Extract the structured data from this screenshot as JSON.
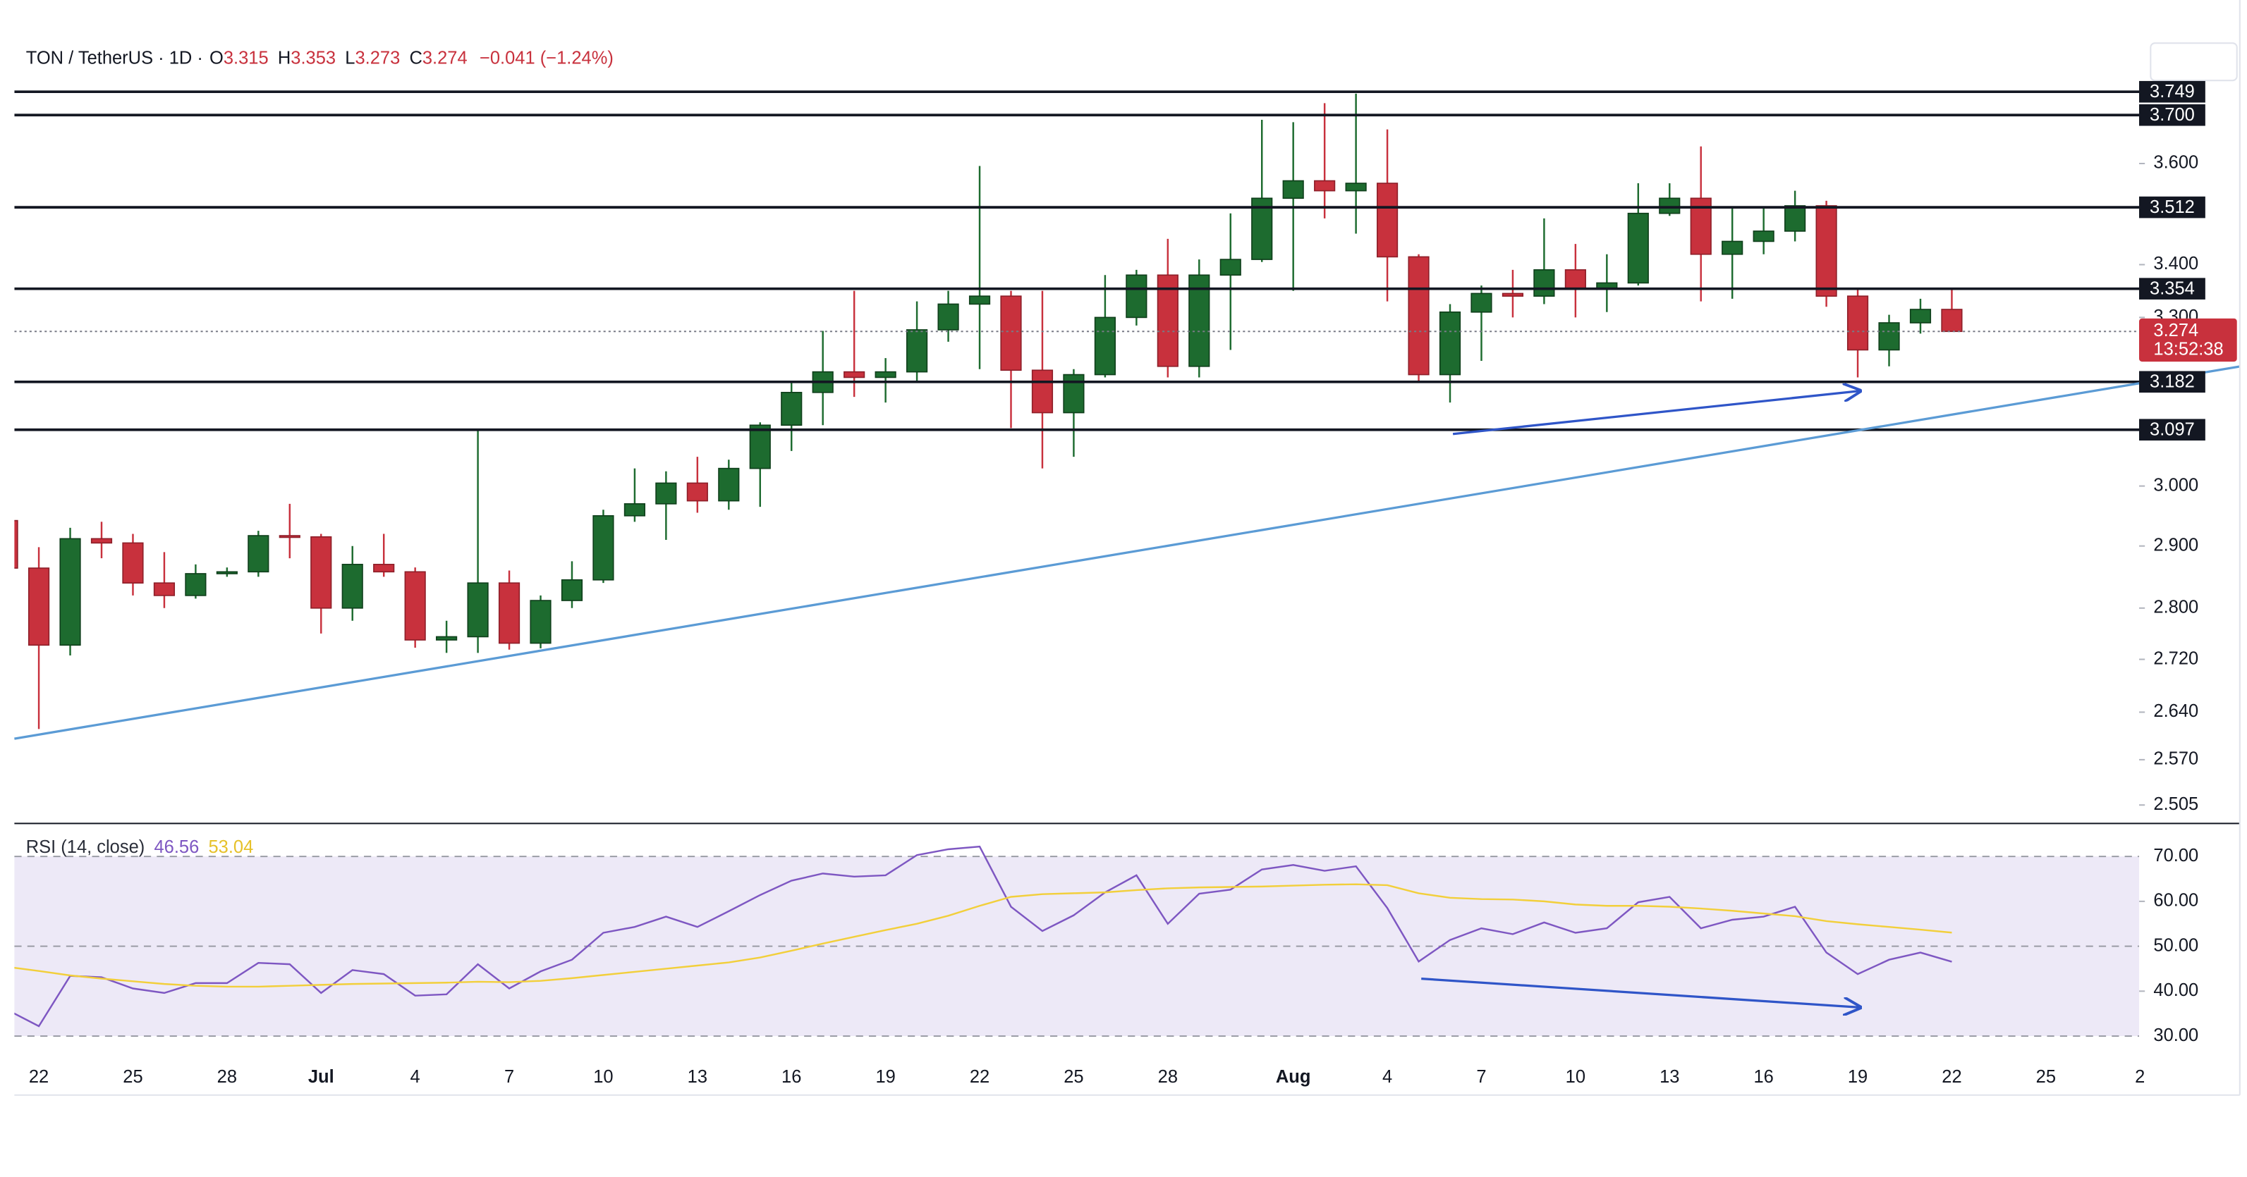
{
  "chart_data": [
    {
      "type": "candlestick",
      "symbol": "TON / TetherUS · 1D ·",
      "ohlc_labels": [
        "O",
        "H",
        "L",
        "C"
      ],
      "change": "−0.041 (−1.24%)",
      "countdown": "13:52:38",
      "up_color": "#1d6b2f",
      "down_color": "#c8313d",
      "log_scale": true,
      "categories": [
        null,
        "22",
        null,
        null,
        "25",
        null,
        null,
        "28",
        null,
        null,
        "Jul",
        null,
        null,
        "4",
        null,
        null,
        "7",
        null,
        null,
        "10",
        null,
        null,
        "13",
        null,
        null,
        "16",
        null,
        null,
        "19",
        null,
        null,
        "22",
        null,
        null,
        "25",
        null,
        null,
        "28",
        null,
        null,
        null,
        "Aug",
        null,
        null,
        "4",
        null,
        null,
        "7",
        null,
        null,
        "10",
        null,
        null,
        "13",
        null,
        null,
        "16",
        null,
        null,
        "19",
        null,
        null,
        "22",
        null,
        null,
        "25",
        null,
        null,
        "2"
      ],
      "open": [
        2.942,
        2.864,
        2.742,
        2.912,
        2.905,
        2.84,
        2.82,
        2.855,
        2.858,
        2.917,
        2.915,
        2.8,
        2.87,
        2.858,
        2.75,
        2.755,
        2.84,
        2.745,
        2.812,
        2.845,
        2.95,
        2.97,
        3.005,
        2.975,
        3.03,
        3.105,
        3.163,
        3.2,
        3.19,
        3.2,
        3.277,
        3.325,
        3.34,
        3.203,
        3.127,
        3.195,
        3.3,
        3.38,
        3.21,
        3.38,
        3.41,
        3.53,
        3.565,
        3.545,
        3.56,
        3.415,
        3.195,
        3.31,
        3.345,
        3.34,
        3.39,
        3.355,
        3.365,
        3.5,
        3.53,
        3.42,
        3.445,
        3.465,
        3.515,
        3.34,
        3.24,
        3.29,
        3.315,
        null,
        null,
        null,
        null,
        null,
        null
      ],
      "high": [
        2.955,
        2.898,
        2.93,
        2.94,
        2.92,
        2.89,
        2.87,
        2.865,
        2.925,
        2.97,
        2.92,
        2.9,
        2.92,
        2.865,
        2.78,
        3.095,
        2.86,
        2.82,
        2.875,
        2.96,
        3.03,
        3.025,
        3.05,
        3.045,
        3.11,
        3.18,
        3.275,
        3.35,
        3.225,
        3.33,
        3.35,
        3.595,
        3.35,
        3.35,
        3.205,
        3.38,
        3.39,
        3.45,
        3.41,
        3.5,
        3.69,
        3.685,
        3.725,
        3.745,
        3.67,
        3.42,
        3.325,
        3.36,
        3.39,
        3.49,
        3.44,
        3.42,
        3.56,
        3.56,
        3.635,
        3.51,
        3.51,
        3.545,
        3.525,
        3.355,
        3.305,
        3.335,
        3.353,
        null,
        null,
        null,
        null,
        null,
        null
      ],
      "low": [
        2.85,
        2.615,
        2.726,
        2.88,
        2.82,
        2.8,
        2.815,
        2.85,
        2.85,
        2.88,
        2.76,
        2.78,
        2.85,
        2.738,
        2.73,
        2.73,
        2.735,
        2.737,
        2.8,
        2.84,
        2.94,
        2.91,
        2.955,
        2.96,
        2.965,
        3.06,
        3.105,
        3.155,
        3.145,
        3.18,
        3.255,
        3.205,
        3.1,
        3.03,
        3.05,
        3.19,
        3.285,
        3.19,
        3.19,
        3.24,
        3.405,
        3.35,
        3.49,
        3.46,
        3.33,
        3.18,
        3.145,
        3.22,
        3.3,
        3.325,
        3.3,
        3.31,
        3.36,
        3.495,
        3.33,
        3.335,
        3.42,
        3.445,
        3.32,
        3.19,
        3.21,
        3.27,
        3.273,
        null,
        null,
        null,
        null,
        null,
        null
      ],
      "close": [
        2.864,
        2.742,
        2.912,
        2.905,
        2.84,
        2.82,
        2.855,
        2.858,
        2.917,
        2.915,
        2.8,
        2.87,
        2.858,
        2.75,
        2.755,
        2.84,
        2.745,
        2.812,
        2.845,
        2.95,
        2.97,
        3.005,
        2.975,
        3.03,
        3.105,
        3.163,
        3.2,
        3.19,
        3.2,
        3.277,
        3.325,
        3.34,
        3.203,
        3.127,
        3.195,
        3.3,
        3.38,
        3.21,
        3.38,
        3.41,
        3.53,
        3.565,
        3.545,
        3.56,
        3.415,
        3.195,
        3.31,
        3.345,
        3.34,
        3.39,
        3.355,
        3.365,
        3.5,
        3.53,
        3.42,
        3.445,
        3.465,
        3.515,
        3.34,
        3.24,
        3.29,
        3.315,
        3.274,
        null,
        null,
        null,
        null,
        null,
        null
      ],
      "ylim": [
        2.479,
        3.885
      ],
      "yticks": [
        2.505,
        {
          "value": 2.57,
          "label": "2.570"
        },
        {
          "value": 2.64,
          "label": "2.640"
        },
        {
          "value": 2.72,
          "label": "2.720"
        },
        {
          "value": 2.8,
          "label": "2.800"
        },
        {
          "value": 2.9,
          "label": "2.900"
        },
        {
          "value": 3,
          "label": "3.000"
        },
        {
          "value": 3.3,
          "label": "3.300"
        },
        {
          "value": 3.4,
          "label": "3.400"
        },
        {
          "value": 3.6,
          "label": "3.600"
        }
      ],
      "levels": [
        3.749,
        {
          "value": 3.7,
          "label": "3.700"
        },
        3.512,
        3.354,
        3.182,
        3.097
      ]
    },
    {
      "type": "line",
      "title": "RSI (14, close)",
      "band_color": "#ede9f7",
      "series": [
        {
          "color": "#7e57c2",
          "values": [
            35.8,
            32.2,
            43.4,
            43.1,
            40.6,
            39.6,
            41.8,
            41.8,
            46.3,
            46.0,
            39.6,
            44.7,
            43.8,
            39.0,
            39.3,
            46.0,
            40.6,
            44.4,
            47.0,
            53.0,
            54.3,
            56.6,
            54.3,
            57.8,
            61.4,
            64.6,
            66.2,
            65.5,
            65.8,
            70.3,
            71.6,
            72.2,
            58.8,
            53.4,
            56.9,
            62.0,
            65.8,
            55.0,
            61.7,
            62.6,
            67.1,
            68.1,
            66.8,
            67.8,
            58.5,
            46.6,
            51.4,
            54.0,
            52.7,
            55.3,
            53.0,
            54.0,
            59.8,
            61.0,
            54.0,
            55.9,
            56.6,
            58.8,
            48.6,
            43.8,
            47.0,
            48.6,
            46.56,
            null,
            null,
            null,
            null,
            null,
            null
          ]
        },
        {
          "color": "#f2cf3b",
          "values": [
            45.4,
            44.5,
            43.5,
            42.8,
            42.2,
            41.6,
            41.2,
            41.0,
            41.0,
            41.2,
            41.4,
            41.6,
            41.7,
            41.8,
            41.9,
            42.1,
            42.0,
            42.3,
            42.9,
            43.6,
            44.3,
            45.0,
            45.7,
            46.4,
            47.5,
            49.0,
            50.6,
            52.1,
            53.6,
            55.0,
            56.8,
            59.0,
            61.0,
            61.6,
            61.8,
            62.0,
            62.5,
            62.9,
            63.1,
            63.2,
            63.3,
            63.5,
            63.7,
            63.8,
            63.6,
            61.8,
            60.8,
            60.5,
            60.4,
            60.0,
            59.3,
            59.0,
            59.0,
            58.8,
            58.4,
            57.9,
            57.3,
            56.7,
            55.6,
            54.9,
            54.3,
            53.7,
            53.04,
            null,
            null,
            null,
            null,
            null,
            null
          ]
        }
      ],
      "ylim": [
        25.5,
        76.7
      ],
      "yticks": [
        {
          "value": 30,
          "label": "30.00"
        },
        {
          "value": 40,
          "label": "40.00"
        },
        {
          "value": 50,
          "label": "50.00"
        },
        {
          "value": 60,
          "label": "60.00"
        },
        {
          "value": 70,
          "label": "70.00"
        }
      ]
    }
  ]
}
